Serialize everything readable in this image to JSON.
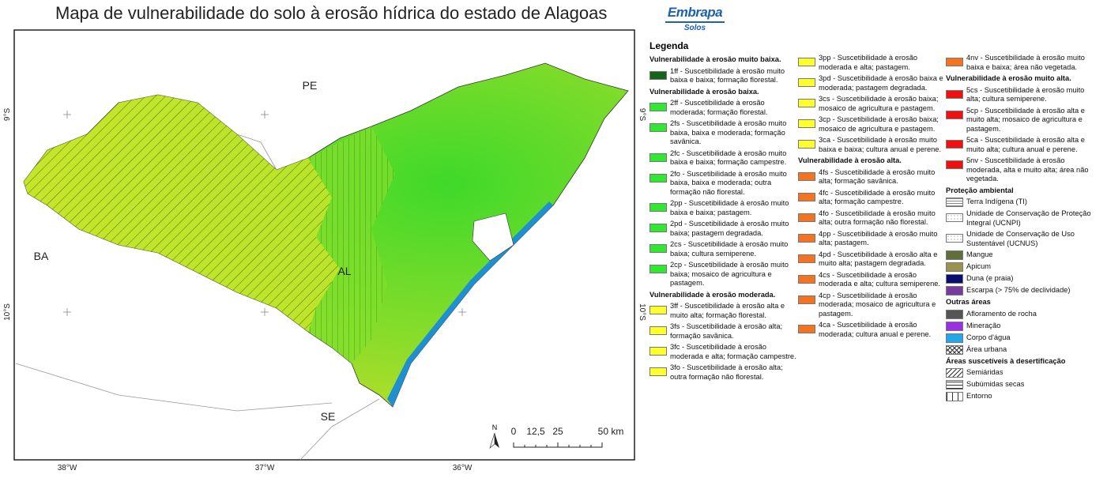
{
  "header": {
    "title": "Mapa de vulnerabilidade do solo à erosão hídrica do estado de Alagoas",
    "logo": "Embrapa",
    "logo_subtitle": "Solos"
  },
  "map": {
    "states": [
      "PE",
      "BA",
      "SE",
      "AL"
    ],
    "latitudes": [
      "9°S",
      "10°S"
    ],
    "longitudes": [
      "38°W",
      "37°W",
      "36°W"
    ],
    "north": "N",
    "scale_labels": [
      "0",
      "12,5",
      "25",
      "50 km"
    ]
  },
  "legend": {
    "title": "Legenda",
    "columns": [
      [
        {
          "heading": "Vulnerabilidade à erosão muito baixa."
        },
        {
          "text": "1ff - Suscetibilidade à erosão muito baixa e baixa; formação florestal.",
          "color": "#16641a"
        },
        {
          "heading": "Vulnerabilidade à erosão baixa."
        },
        {
          "text": "2ff - Suscetibilidade à erosão moderada; formação florestal.",
          "color": "#2fe82f"
        },
        {
          "text": "2fs - Suscetibilidade à erosão muito baixa, baixa e moderada; formação savânica.",
          "color": "#2fe82f"
        },
        {
          "text": "2fc - Suscetibilidade à erosão muito baixa e baixa; formação campestre.",
          "color": "#2fe82f"
        },
        {
          "text": "2fo - Suscetibilidade à erosão muito baixa, baixa e moderada; outra formação não florestal.",
          "color": "#2fe82f"
        },
        {
          "text": "2pp - Suscetibilidade à erosão muito baixa e baixa; pastagem.",
          "color": "#2fe82f"
        },
        {
          "text": "2pd - Suscetibilidade à erosão muito baixa; pastagem degradada.",
          "color": "#2fe82f"
        },
        {
          "text": "2cs - Suscetibilidade à erosão muito baixa; cultura semiperene.",
          "color": "#2fe82f"
        },
        {
          "text": "2cp - Suscetibilidade à erosão muito baixa; mosaico de agricultura e pastagem.",
          "color": "#2fe82f"
        },
        {
          "heading": "Vulnerabilidade à erosão moderada."
        },
        {
          "text": "3ff - Suscetibilidade à erosão alta e muito alta; formação florestal.",
          "color": "#ffff2a"
        },
        {
          "text": "3fs - Suscetibilidade à erosão alta; formação savânica.",
          "color": "#ffff2a"
        },
        {
          "text": "3fc - Suscetibilidade à erosão moderada e alta; formação campestre.",
          "color": "#ffff2a"
        },
        {
          "text": "3fo - Suscetibilidade à erosão  alta; outra formação não florestal.",
          "color": "#ffff2a"
        }
      ],
      [
        {
          "text": "3pp - Suscetibilidade à erosão moderada e alta; pastagem.",
          "color": "#ffff2a"
        },
        {
          "text": "3pd - Suscetibilidade à erosão baixa e moderada; pastagem degradada.",
          "color": "#ffff2a"
        },
        {
          "text": "3cs - Suscetibilidade à erosão baixa; mosaico de agricultura e pastagem.",
          "color": "#ffff2a"
        },
        {
          "text": "3cp - Suscetibilidade à erosão baixa; mosaico de agricultura e pastagem.",
          "color": "#ffff2a"
        },
        {
          "text": "3ca - Suscetibilidade à erosão muito baixa e baixa; cultura anual e perene.",
          "color": "#ffff2a"
        },
        {
          "heading": "Vulnerabilidade à erosão alta."
        },
        {
          "text": "4fs - Suscetibilidade à erosão muito alta; formação savânica.",
          "color": "#f47321"
        },
        {
          "text": "4fc - Suscetibilidade à erosão muito alta; formação campestre.",
          "color": "#f47321"
        },
        {
          "text": "4fo - Suscetibilidade à erosão muito alta; outra formação não florestal.",
          "color": "#f47321"
        },
        {
          "text": "4pp - Suscetibilidade à erosão muito alta; pastagem.",
          "color": "#f47321"
        },
        {
          "text": "4pd - Suscetibilidade à erosão alta e muito alta; pastagem degradada.",
          "color": "#f47321"
        },
        {
          "text": "4cs - Suscetibilidade à erosão moderada e alta; cultura semiperene.",
          "color": "#f47321"
        },
        {
          "text": "4cp - Suscetibilidade à erosão moderada; mosaico de agricultura e pastagem.",
          "color": "#f47321"
        },
        {
          "text": "4ca - Suscetibilidade à erosão moderada; cultura anual e perene.",
          "color": "#f47321"
        }
      ],
      [
        {
          "text": "4nv - Suscetibilidade à erosão muito baixa e baixa; área não vegetada.",
          "color": "#f47321"
        },
        {
          "heading": "Vulnerabilidade à erosão muito alta."
        },
        {
          "text": "5cs - Suscetibilidade à erosão muito alta; cultura semiperene.",
          "color": "#f01010"
        },
        {
          "text": "5cp - Suscetibilidade à erosão alta e muito alta; mosaico de agricultura e pastagem.",
          "color": "#f01010"
        },
        {
          "text": "5ca - Suscetibilidade à erosão alta e muito alta; cultura anual e perene.",
          "color": "#f01010"
        },
        {
          "text": "5nv - Suscetibilidade à erosão moderada, alta e muito alta; área não vegetada.",
          "color": "#f01010"
        },
        {
          "heading": "Proteção ambiental"
        },
        {
          "text": "Terra Indígena (TI)",
          "pattern": "grid"
        },
        {
          "text": "Unidade de Conservação de Proteção Integral (UCNPI)",
          "pattern": "dots"
        },
        {
          "text": "Unidade de Conservação de Uso Sustentável (UCNUS)",
          "pattern": "dots"
        },
        {
          "text": "Mangue",
          "color": "#5f6e3a"
        },
        {
          "text": "Apicum",
          "color": "#9b9250"
        },
        {
          "text": "Duna (e praia)",
          "color": "#0c0c6e"
        },
        {
          "text": "Escarpa (> 75% de declividade)",
          "color": "#7a3aa0"
        },
        {
          "heading": "Outras áreas"
        },
        {
          "text": "Afloramento de rocha",
          "color": "#555555"
        },
        {
          "text": "Mineração",
          "color": "#9a30e0"
        },
        {
          "text": "Corpo d'água",
          "color": "#20a8e8"
        },
        {
          "text": "Área urbana",
          "pattern": "cross"
        },
        {
          "heading": "Áreas suscetíveis à desertificação"
        },
        {
          "text": "Semiáridas",
          "pattern": "diag"
        },
        {
          "text": "Subúmidas secas",
          "pattern": "horiz"
        },
        {
          "text": "Entorno",
          "pattern": "vert"
        }
      ]
    ]
  }
}
